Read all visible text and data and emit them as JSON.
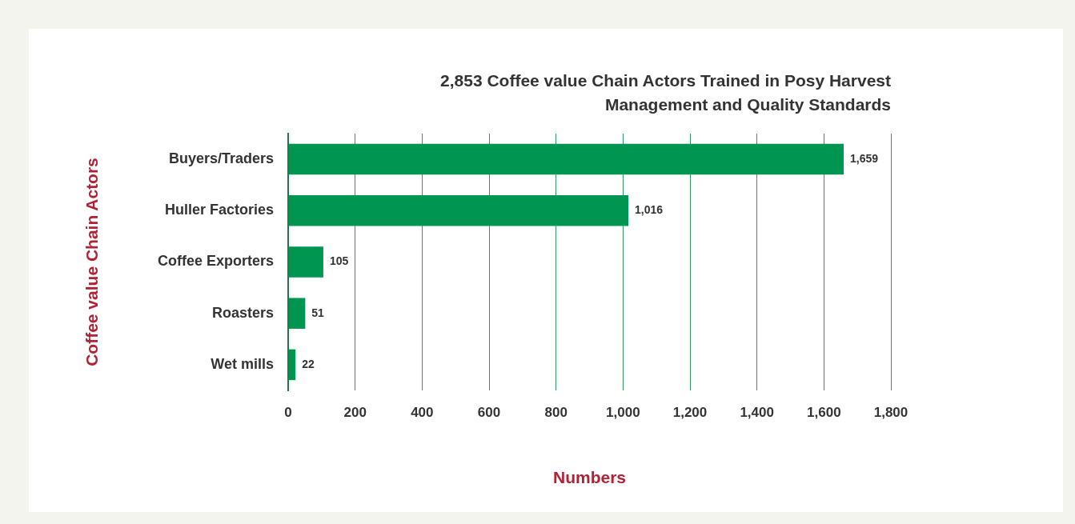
{
  "chart_data": {
    "type": "bar",
    "orientation": "horizontal",
    "title": "2,853 Coffee value Chain Actors Trained in Posy Harvest Management and Quality Standards",
    "xlabel": "Numbers",
    "ylabel": "Coffee value Chain Actors",
    "categories": [
      "Buyers/Traders",
      "Huller Factories",
      "Coffee Exporters",
      "Roasters",
      "Wet mills"
    ],
    "values": [
      1659,
      1016,
      105,
      51,
      22
    ],
    "value_labels": [
      "1,659",
      "1,016",
      "105",
      "51",
      "22"
    ],
    "color": "#009551",
    "xlim": [
      0,
      1800
    ],
    "xticks": [
      0,
      200,
      400,
      600,
      800,
      {
        "value": 1000,
        "label": "1,000"
      },
      {
        "value": 1200,
        "label": "1,200"
      },
      {
        "value": 1400,
        "label": "1,400"
      },
      {
        "value": 1600,
        "label": "1,600"
      },
      {
        "value": 1800,
        "label": "1,800"
      }
    ],
    "grid": "x"
  }
}
